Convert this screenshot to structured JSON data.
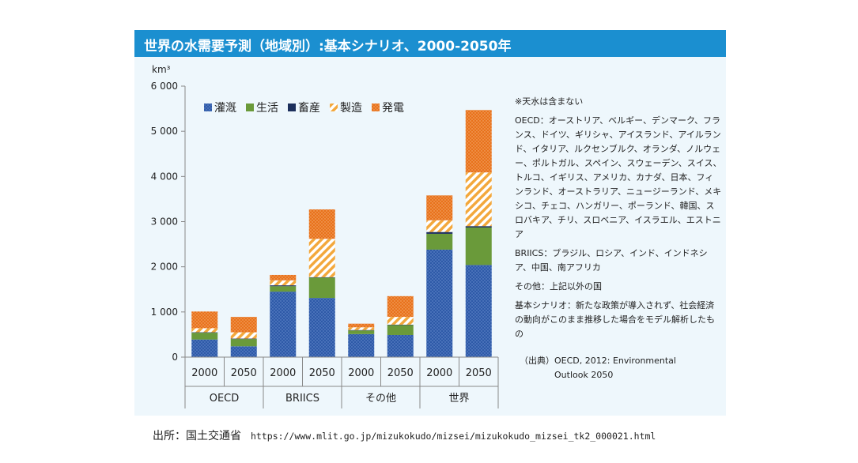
{
  "chart_data": {
    "type": "bar",
    "stacked": true,
    "title": "世界の水需要予測（地域別）:基本シナリオ、2000-2050年",
    "unit": "km³",
    "ylim": [
      0,
      6000
    ],
    "yticks": [
      "0",
      "1 000",
      "2 000",
      "3 000",
      "4 000",
      "5 000",
      "6 000"
    ],
    "groups": [
      "OECD",
      "BRIICS",
      "その他",
      "世界"
    ],
    "categories": [
      "2000",
      "2050",
      "2000",
      "2050",
      "2000",
      "2050",
      "2000",
      "2050"
    ],
    "legend_position": "top-left",
    "series": [
      {
        "name": "灌漑",
        "color": "#2e5aa8",
        "pattern": "dots",
        "values": [
          390,
          240,
          1450,
          1310,
          510,
          490,
          2380,
          2040
        ]
      },
      {
        "name": "生活",
        "color": "#6a9a3a",
        "pattern": "solid",
        "values": [
          150,
          160,
          120,
          450,
          80,
          220,
          350,
          830
        ]
      },
      {
        "name": "畜産",
        "color": "#1c2f5c",
        "pattern": "solid",
        "values": [
          10,
          10,
          20,
          10,
          10,
          10,
          40,
          30
        ]
      },
      {
        "name": "製造",
        "color": "#f3a83c",
        "pattern": "stripes",
        "values": [
          90,
          140,
          110,
          850,
          60,
          170,
          260,
          1190
        ]
      },
      {
        "name": "発電",
        "color": "#e8721c",
        "pattern": "dots",
        "values": [
          370,
          340,
          120,
          650,
          80,
          460,
          550,
          1380
        ]
      }
    ]
  },
  "notes": [
    "※天水は含まない",
    "OECD：オーストリア、ベルギー、デンマーク、フランス、ドイツ、ギリシャ、アイスランド、アイルランド、イタリア、ルクセンブルク、オランダ、ノルウェー、ポルトガル、スペイン、スウェーデン、スイス、トルコ、イギリス、アメリカ、カナダ、日本、フィンランド、オーストラリア、ニュージーランド、メキシコ、チェコ、ハンガリー、ポーランド、韓国、スロバキア、チリ、スロベニア、イスラエル、エストニア",
    "BRIICS：ブラジル、ロシア、インド、インドネシア、中国、南アフリカ",
    "その他：上記以外の国",
    "基本シナリオ：新たな政策が導入されず、社会経済の動向がこのまま推移した場合をモデル解析したもの"
  ],
  "source_note": {
    "line1": "（出典）OECD, 2012: Environmental",
    "line2": "Outlook 2050"
  },
  "footer": {
    "label": "出所：国土交通省",
    "url": "https://www.mlit.go.jp/mizukokudo/mizsei/mizukokudo_mizsei_tk2_000021.html"
  }
}
